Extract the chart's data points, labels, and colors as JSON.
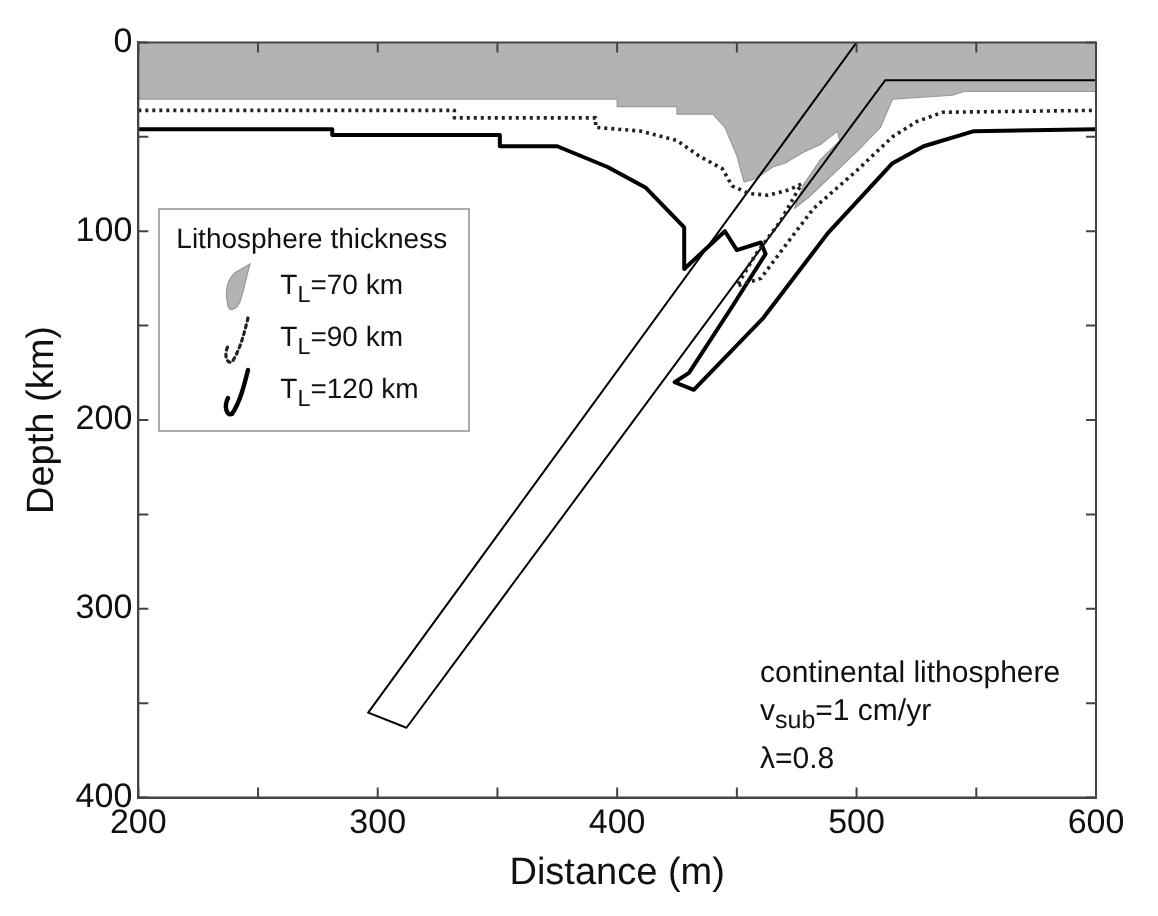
{
  "chart_data": {
    "type": "line",
    "xlabel": "Distance (m)",
    "ylabel": "Depth (km)",
    "legend_title": "Lithosphere thickness",
    "legend": "left",
    "grid": false,
    "marker": "none",
    "xlim": [
      200,
      600
    ],
    "xticks": [
      200,
      {
        "value": 250,
        "label": null
      },
      300,
      {
        "value": 350,
        "label": null
      },
      400,
      {
        "value": 450,
        "label": null
      },
      500,
      {
        "value": 550,
        "label": null
      },
      600
    ],
    "ylim": [
      400,
      0
    ],
    "yticks": [
      0,
      {
        "value": 50,
        "label": null
      },
      100,
      {
        "value": 150,
        "label": null
      },
      200,
      {
        "value": 250,
        "label": null
      },
      300,
      {
        "value": 350,
        "label": null
      },
      400
    ],
    "series": [
      {
        "name": "T$_{L}$=70 km",
        "type": "area",
        "color": "#b3b3b3",
        "x": [
          200,
          400,
          400,
          425,
          425,
          440,
          445,
          450,
          453,
          458,
          465,
          470,
          478,
          485,
          492,
          493,
          485,
          478,
          474,
          480,
          490,
          500,
          510,
          515,
          540,
          545,
          600
        ],
        "values": [
          30,
          30,
          34,
          34,
          38,
          38,
          45,
          60,
          74,
          72,
          66,
          64,
          58,
          54,
          47,
          52,
          62,
          75,
          88,
          82,
          70,
          58,
          45,
          30,
          28,
          26,
          26
        ]
      },
      {
        "name": "T$_{L}$=90 km",
        "line_style": "dotted",
        "color": "#222222",
        "x": [
          200,
          332,
          332,
          391,
          391,
          410,
          425,
          434,
          444,
          448,
          455,
          463,
          472,
          477,
          468,
          458,
          450,
          460,
          470,
          482,
          500,
          515,
          525,
          536,
          600
        ],
        "values": [
          36,
          36,
          40,
          40,
          45,
          47,
          52,
          60,
          67,
          76,
          80,
          81,
          78,
          75,
          95,
          112,
          129,
          125,
          108,
          88,
          68,
          50,
          42,
          37,
          36
        ]
      },
      {
        "name": "T$_{L}$=120 km",
        "line_style": "solid",
        "color": "#000000",
        "x": [
          200,
          281,
          281,
          351,
          351,
          375,
          396,
          412,
          428,
          428,
          445,
          450,
          460,
          462,
          448,
          430,
          424,
          432,
          461,
          488,
          515,
          528,
          549,
          600
        ],
        "values": [
          46,
          46,
          49,
          49,
          55,
          55,
          66,
          77,
          98,
          120,
          100,
          110,
          106,
          112,
          140,
          175,
          180,
          184,
          146,
          101,
          64,
          55,
          47,
          46
        ]
      },
      {
        "line_style": "solid",
        "color": "#000000",
        "x": [
          500,
          296,
          312,
          512,
          600
        ],
        "values": [
          0,
          355,
          363,
          20,
          20
        ]
      }
    ],
    "annotations": [
      "continental lithosphere",
      "v$_{sub}$=1 cm/yr",
      "λ=0.8"
    ]
  }
}
